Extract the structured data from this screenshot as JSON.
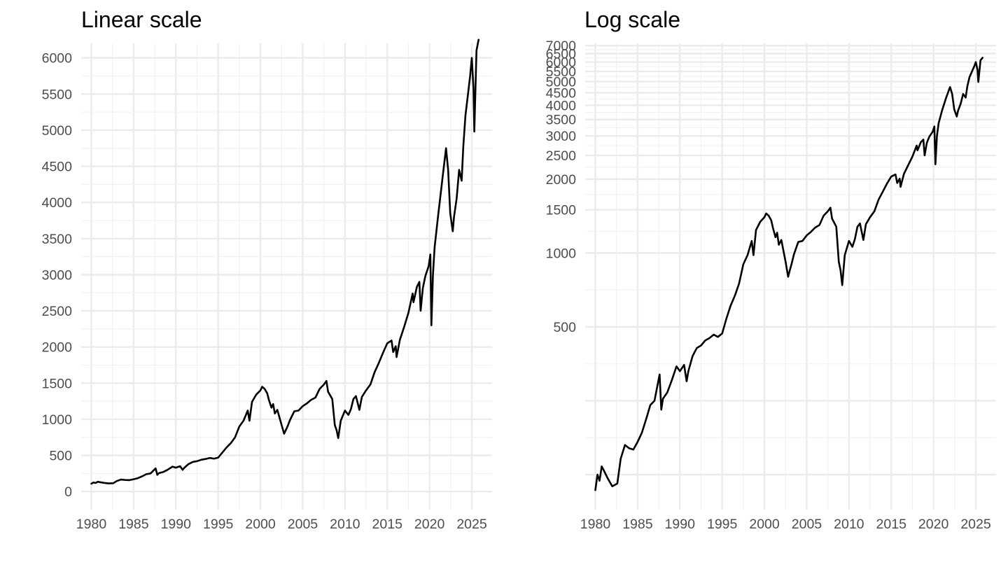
{
  "chart_data": [
    {
      "type": "line",
      "title": "Linear scale",
      "scale": "linear",
      "xlabel": "",
      "ylabel": "",
      "xlim": [
        1978.8,
        2027.4
      ],
      "ylim": [
        -250,
        6200
      ],
      "x_ticks": [
        1980,
        1985,
        1990,
        1995,
        2000,
        2005,
        2010,
        2015,
        2020,
        2025
      ],
      "x_tick_labels": [
        "1980",
        "1985",
        "1990",
        "1995",
        "2000",
        "2005",
        "2010",
        "2015",
        "2020",
        "2025"
      ],
      "y_ticks": [
        0,
        500,
        1000,
        1500,
        2000,
        2500,
        3000,
        3500,
        4000,
        4500,
        5000,
        5500,
        6000
      ],
      "y_tick_labels": [
        "0",
        "500",
        "1000",
        "1500",
        "2000",
        "2500",
        "3000",
        "3500",
        "4000",
        "4500",
        "5000",
        "5500",
        "6000"
      ],
      "grid": true,
      "legend": "none",
      "line_color": "#000000"
    },
    {
      "type": "line",
      "title": "Log scale",
      "scale": "log",
      "xlabel": "",
      "ylabel": "",
      "xlim": [
        1978.8,
        2027.4
      ],
      "ylim": [
        90,
        7150
      ],
      "x_ticks": [
        1980,
        1985,
        1990,
        1995,
        2000,
        2005,
        2010,
        2015,
        2020,
        2025
      ],
      "x_tick_labels": [
        "1980",
        "1985",
        "1990",
        "1995",
        "2000",
        "2005",
        "2010",
        "2015",
        "2020",
        "2025"
      ],
      "y_ticks": [
        500,
        1000,
        1500,
        2000,
        2500,
        3000,
        3500,
        4000,
        4500,
        5000,
        5500,
        6000,
        6500,
        7000
      ],
      "y_tick_labels": [
        "500",
        "1000",
        "1500",
        "2000",
        "2500",
        "3000",
        "3500",
        "4000",
        "4500",
        "5000",
        "5500",
        "6000",
        "6500",
        "7000"
      ],
      "grid": true,
      "legend": "none",
      "line_color": "#000000"
    }
  ],
  "series": {
    "name": "",
    "x": [
      1980.0,
      1980.25,
      1980.5,
      1980.75,
      1981.0,
      1981.5,
      1982.0,
      1982.6,
      1983.0,
      1983.5,
      1984.0,
      1984.5,
      1985.0,
      1985.5,
      1986.0,
      1986.5,
      1987.0,
      1987.6,
      1987.8,
      1988.0,
      1988.5,
      1989.0,
      1989.6,
      1990.0,
      1990.5,
      1990.8,
      1991.0,
      1991.5,
      1992.0,
      1992.5,
      1993.0,
      1993.5,
      1994.0,
      1994.5,
      1995.0,
      1995.5,
      1996.0,
      1996.5,
      1997.0,
      1997.5,
      1998.0,
      1998.5,
      1998.7,
      1999.0,
      1999.5,
      2000.0,
      2000.2,
      2000.5,
      2000.8,
      2001.0,
      2001.3,
      2001.5,
      2001.7,
      2002.0,
      2002.5,
      2002.8,
      2003.0,
      2003.2,
      2003.5,
      2004.0,
      2004.5,
      2005.0,
      2005.5,
      2006.0,
      2006.5,
      2007.0,
      2007.5,
      2007.8,
      2008.0,
      2008.5,
      2008.8,
      2009.0,
      2009.2,
      2009.5,
      2010.0,
      2010.4,
      2010.7,
      2011.0,
      2011.3,
      2011.7,
      2012.0,
      2012.5,
      2013.0,
      2013.5,
      2014.0,
      2014.5,
      2015.0,
      2015.5,
      2015.7,
      2016.0,
      2016.1,
      2016.5,
      2017.0,
      2017.5,
      2018.0,
      2018.1,
      2018.5,
      2018.8,
      2018.95,
      2019.2,
      2019.5,
      2019.9,
      2020.1,
      2020.22,
      2020.4,
      2020.6,
      2021.0,
      2021.5,
      2021.95,
      2022.2,
      2022.45,
      2022.75,
      2022.9,
      2023.2,
      2023.5,
      2023.8,
      2024.0,
      2024.25,
      2024.5,
      2024.8,
      2025.0,
      2025.2,
      2025.3,
      2025.55,
      2025.8
    ],
    "y": [
      108,
      125,
      118,
      135,
      130,
      120,
      112,
      115,
      145,
      165,
      160,
      158,
      170,
      185,
      210,
      240,
      250,
      320,
      230,
      255,
      270,
      300,
      345,
      330,
      350,
      300,
      330,
      380,
      410,
      420,
      440,
      450,
      465,
      455,
      470,
      540,
      610,
      670,
      750,
      900,
      980,
      1120,
      980,
      1240,
      1340,
      1400,
      1450,
      1420,
      1360,
      1270,
      1160,
      1210,
      1080,
      1130,
      920,
      800,
      850,
      900,
      990,
      1110,
      1120,
      1180,
      1220,
      1270,
      1300,
      1420,
      1480,
      1530,
      1380,
      1280,
      920,
      850,
      740,
      980,
      1120,
      1060,
      1140,
      1280,
      1320,
      1130,
      1310,
      1400,
      1480,
      1650,
      1780,
      1920,
      2050,
      2090,
      1930,
      2010,
      1860,
      2100,
      2280,
      2470,
      2740,
      2620,
      2830,
      2900,
      2500,
      2810,
      2980,
      3120,
      3280,
      2300,
      3000,
      3380,
      3800,
      4300,
      4750,
      4450,
      3850,
      3600,
      3800,
      4050,
      4450,
      4300,
      4780,
      5210,
      5450,
      5750,
      6000,
      5580,
      4980,
      6100,
      6250
    ]
  }
}
